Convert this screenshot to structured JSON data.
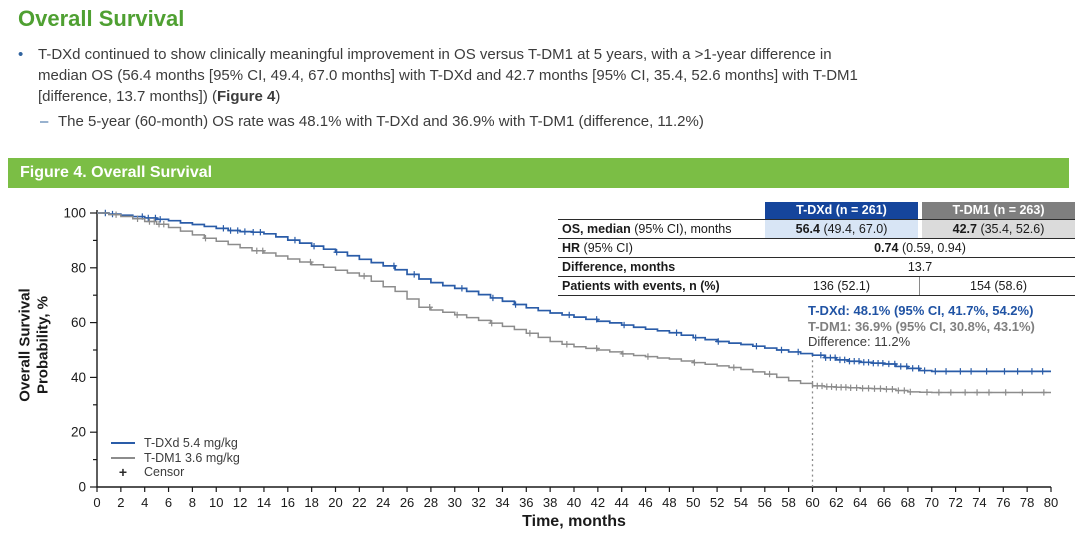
{
  "page": {
    "title": "Overall Survival"
  },
  "colors": {
    "title_green": "#4fa032",
    "figbar_green": "#7bbe45",
    "tdxd_navy": "#15459c",
    "tdxd_light": "#d8e5f5",
    "tdm1_gray": "#7f7f7f",
    "tdm1_light": "#dbdbdb",
    "curve_blue": "#2a5ca8",
    "curve_gray": "#8c8c8c",
    "bullet_blue": "#31649f"
  },
  "bullets": {
    "bullet_glyph": "•",
    "dash_glyph": "–",
    "b1_line1": "T-DXd continued to show clinically meaningful improvement in OS versus T-DM1 at 5 years, with a >1-year difference in",
    "b1_line2": "median OS (56.4 months [95% CI, 49.4, 67.0 months] with T-DXd and 42.7 months [95% CI, 35.4, 52.6 months] with T-DM1",
    "b1_line3_pre": "[difference, 13.7 months]) (",
    "b1_line3_bold": "Figure 4",
    "b1_line3_post": ")",
    "b2": "The 5-year (60-month) OS rate was 48.1% with T-DXd and 36.9% with T-DM1 (difference, 11.2%)"
  },
  "figure_header": {
    "label": "Figure 4. Overall Survival"
  },
  "table": {
    "header": {
      "tdxd": "T-DXd (n = 261)",
      "tdm1": "T-DM1 (n = 263)"
    },
    "row_os": {
      "label_bold": "OS, median",
      "label_rest": " (95% CI), months",
      "tdxd_bold": "56.4",
      "tdxd_rest": " (49.4, 67.0)",
      "tdm1_bold": "42.7",
      "tdm1_rest": " (35.4, 52.6)"
    },
    "row_hr": {
      "label_bold": "HR",
      "label_rest": " (95% CI)",
      "value_bold": "0.74",
      "value_rest": " (0.59, 0.94)"
    },
    "row_diff": {
      "label_bold": "Difference, months",
      "value": "13.7"
    },
    "row_events": {
      "label_bold": "Patients with events, n (%)",
      "tdxd": "136 (52.1)",
      "tdm1": "154 (58.6)"
    }
  },
  "annotation": {
    "tdxd": "T-DXd: 48.1% (95% CI, 41.7%, 54.2%)",
    "tdm1": "T-DM1: 36.9% (95% CI, 30.8%, 43.1%)",
    "diff": "Difference: 11.2%"
  },
  "chart_data": {
    "type": "line",
    "subtype": "kaplan-meier-step",
    "title": "Figure 4. Overall Survival",
    "xlabel": "Time, months",
    "ylabel": "Overall Survival Probability, %",
    "ylabel_lines": [
      "Overall Survival",
      "Probability, %"
    ],
    "xlim": [
      0,
      80
    ],
    "ylim": [
      0,
      100
    ],
    "x_tick_step": 2,
    "y_tick_label_step": 20,
    "y_tick_minor_step": 10,
    "grid": false,
    "legend_position": "lower-left",
    "reference_line": {
      "x": 60,
      "to_y": 48.1,
      "style": "dotted"
    },
    "legend": [
      {
        "label": "T-DXd 5.4 mg/kg",
        "color": "#2a5ca8",
        "type": "line"
      },
      {
        "label": "T-DM1 3.6 mg/kg",
        "color": "#8c8c8c",
        "type": "line"
      },
      {
        "label": "Censor",
        "color": "#2b2b2b",
        "type": "plus"
      }
    ],
    "series": [
      {
        "name": "T-DXd 5.4 mg/kg",
        "color": "#2a5ca8",
        "points": [
          [
            0,
            100
          ],
          [
            1,
            99.6
          ],
          [
            2,
            99.2
          ],
          [
            3,
            98.7
          ],
          [
            4,
            98.2
          ],
          [
            5,
            97.7
          ],
          [
            6,
            97.2
          ],
          [
            7,
            96.4
          ],
          [
            8,
            95.8
          ],
          [
            9,
            95.1
          ],
          [
            10,
            94.4
          ],
          [
            11,
            93.6
          ],
          [
            12,
            93.2
          ],
          [
            13,
            93.0
          ],
          [
            14,
            92.4
          ],
          [
            15,
            91.3
          ],
          [
            16,
            90.1
          ],
          [
            17,
            89.0
          ],
          [
            18,
            87.9
          ],
          [
            19,
            86.8
          ],
          [
            20,
            85.7
          ],
          [
            21,
            84.4
          ],
          [
            22,
            83.1
          ],
          [
            23,
            81.9
          ],
          [
            24,
            80.7
          ],
          [
            25,
            79.3
          ],
          [
            26,
            77.6
          ],
          [
            27,
            75.9
          ],
          [
            28,
            74.6
          ],
          [
            29,
            73.5
          ],
          [
            30,
            72.5
          ],
          [
            31,
            71.4
          ],
          [
            32,
            70.2
          ],
          [
            33,
            69.0
          ],
          [
            34,
            67.8
          ],
          [
            35,
            66.6
          ],
          [
            36,
            65.4
          ],
          [
            37,
            64.4
          ],
          [
            38,
            63.5
          ],
          [
            39,
            62.8
          ],
          [
            40,
            62.0
          ],
          [
            41,
            61.2
          ],
          [
            42,
            60.5
          ],
          [
            43,
            59.9
          ],
          [
            44,
            59.1
          ],
          [
            45,
            58.3
          ],
          [
            46,
            57.6
          ],
          [
            47,
            57.0
          ],
          [
            48,
            56.3
          ],
          [
            49,
            55.4
          ],
          [
            50,
            54.5
          ],
          [
            51,
            53.8
          ],
          [
            52,
            53.1
          ],
          [
            53,
            52.5
          ],
          [
            54,
            52.0
          ],
          [
            55,
            51.4
          ],
          [
            56,
            50.7
          ],
          [
            57,
            50.0
          ],
          [
            58,
            49.3
          ],
          [
            59,
            48.7
          ],
          [
            60,
            48.1
          ],
          [
            61,
            47.2
          ],
          [
            62,
            46.4
          ],
          [
            63,
            45.9
          ],
          [
            64,
            45.5
          ],
          [
            65,
            45.2
          ],
          [
            66,
            44.9
          ],
          [
            67,
            44.0
          ],
          [
            68,
            43.3
          ],
          [
            69,
            42.5
          ],
          [
            70,
            42.2
          ],
          [
            80,
            42.2
          ]
        ],
        "censors": [
          0.7,
          1.3,
          3.8,
          4.3,
          4.9,
          5.3,
          10.6,
          11.2,
          11.8,
          12.4,
          13.1,
          13.7,
          16.6,
          18.2,
          20.1,
          24.9,
          26.6,
          30.6,
          33.2,
          35.1,
          39.6,
          41.9,
          44.2,
          48.6,
          50.2,
          52.1,
          55.3,
          57.4,
          58.8,
          60.7,
          61.1,
          61.5,
          61.9,
          62.3,
          62.7,
          63.1,
          63.5,
          63.9,
          64.3,
          64.7,
          65.1,
          65.5,
          65.9,
          66.4,
          66.9,
          67.4,
          67.9,
          68.4,
          68.9,
          69.4,
          70.3,
          71.2,
          72.4,
          73.3,
          74.6,
          76.1,
          77.2,
          78.4,
          79.3
        ]
      },
      {
        "name": "T-DM1 3.6 mg/kg",
        "color": "#8c8c8c",
        "points": [
          [
            0,
            100
          ],
          [
            1,
            99.4
          ],
          [
            2,
            98.7
          ],
          [
            3,
            97.9
          ],
          [
            4,
            96.9
          ],
          [
            5,
            95.9
          ],
          [
            6,
            94.7
          ],
          [
            7,
            93.4
          ],
          [
            8,
            92.0
          ],
          [
            9,
            90.8
          ],
          [
            10,
            89.7
          ],
          [
            11,
            88.5
          ],
          [
            12,
            87.3
          ],
          [
            13,
            86.2
          ],
          [
            14,
            85.4
          ],
          [
            15,
            84.3
          ],
          [
            16,
            83.2
          ],
          [
            17,
            82.1
          ],
          [
            18,
            81.1
          ],
          [
            19,
            80.2
          ],
          [
            20,
            79.1
          ],
          [
            21,
            78.1
          ],
          [
            22,
            77.0
          ],
          [
            23,
            75.1
          ],
          [
            24,
            73.1
          ],
          [
            25,
            71.4
          ],
          [
            26,
            68.6
          ],
          [
            27,
            65.6
          ],
          [
            28,
            64.6
          ],
          [
            29,
            63.8
          ],
          [
            30,
            62.8
          ],
          [
            31,
            61.8
          ],
          [
            32,
            60.8
          ],
          [
            33,
            59.8
          ],
          [
            34,
            58.6
          ],
          [
            35,
            57.5
          ],
          [
            36,
            56.1
          ],
          [
            37,
            54.6
          ],
          [
            38,
            53.1
          ],
          [
            39,
            52.1
          ],
          [
            40,
            51.2
          ],
          [
            41,
            50.6
          ],
          [
            42,
            50.0
          ],
          [
            43,
            49.3
          ],
          [
            44,
            48.6
          ],
          [
            45,
            48.0
          ],
          [
            46,
            47.6
          ],
          [
            47,
            47.1
          ],
          [
            48,
            46.7
          ],
          [
            49,
            46.0
          ],
          [
            50,
            45.4
          ],
          [
            51,
            44.8
          ],
          [
            52,
            44.2
          ],
          [
            53,
            43.6
          ],
          [
            54,
            42.9
          ],
          [
            55,
            42.0
          ],
          [
            56,
            41.2
          ],
          [
            57,
            40.0
          ],
          [
            58,
            38.8
          ],
          [
            59,
            37.8
          ],
          [
            60,
            36.9
          ],
          [
            61,
            36.6
          ],
          [
            62,
            36.4
          ],
          [
            63,
            36.2
          ],
          [
            64,
            36.0
          ],
          [
            65,
            35.9
          ],
          [
            66,
            35.7
          ],
          [
            67,
            35.2
          ],
          [
            68,
            34.7
          ],
          [
            69,
            34.6
          ],
          [
            70,
            34.5
          ],
          [
            80,
            34.5
          ]
        ],
        "censors": [
          1.6,
          3.4,
          4.4,
          4.8,
          5.2,
          5.6,
          9.1,
          13.4,
          13.9,
          17.9,
          22.4,
          27.9,
          30.2,
          33.1,
          36.3,
          39.4,
          41.9,
          44.1,
          46.2,
          50.1,
          53.4,
          56.4,
          60.4,
          60.8,
          61.2,
          61.6,
          62.0,
          62.4,
          62.8,
          63.2,
          63.7,
          64.2,
          64.7,
          65.2,
          65.7,
          66.2,
          66.7,
          67.2,
          67.7,
          68.2,
          69.6,
          70.6,
          71.6,
          72.8,
          73.8,
          74.8,
          76.2,
          77.6,
          79.4
        ]
      }
    ]
  }
}
